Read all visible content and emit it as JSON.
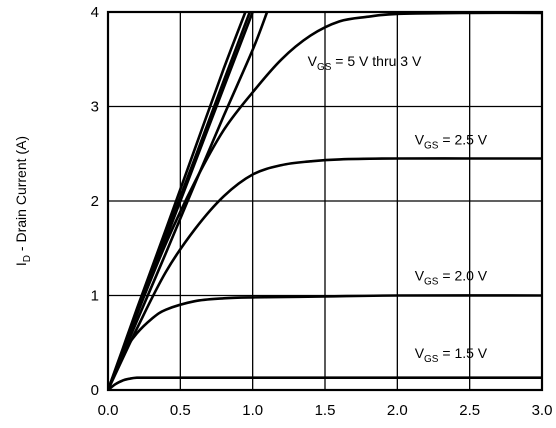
{
  "chart_data": {
    "type": "line",
    "title": "",
    "xlabel": "",
    "ylabel": "I_D - Drain Current (A)",
    "ylabel_main": "I",
    "ylabel_sub": "D",
    "ylabel_rest": " - Drain Current (A)",
    "xlim": [
      0,
      3.0
    ],
    "ylim": [
      0,
      4
    ],
    "x_ticks": [
      "0.0",
      "0.5",
      "1.0",
      "1.5",
      "2.0",
      "2.5",
      "3.0"
    ],
    "y_ticks": [
      "0",
      "1",
      "2",
      "3",
      "4"
    ],
    "grid": true,
    "series": [
      {
        "x": [
          0,
          0.1,
          0.2,
          0.4,
          0.6,
          0.8,
          0.95
        ],
        "y": [
          0,
          0.43,
          0.86,
          1.7,
          2.55,
          3.4,
          4.0
        ]
      },
      {
        "x": [
          0,
          0.1,
          0.2,
          0.4,
          0.6,
          0.8,
          0.98
        ],
        "y": [
          0,
          0.41,
          0.82,
          1.64,
          2.45,
          3.27,
          4.0
        ]
      },
      {
        "x": [
          0,
          0.1,
          0.2,
          0.4,
          0.6,
          0.8,
          1.0
        ],
        "y": [
          0,
          0.4,
          0.8,
          1.6,
          2.4,
          3.2,
          4.0
        ]
      },
      {
        "x": [
          0,
          0.1,
          0.2,
          0.4,
          0.6,
          0.8,
          1.0,
          1.1
        ],
        "y": [
          0,
          0.37,
          0.73,
          1.45,
          2.18,
          2.9,
          3.6,
          4.0
        ]
      },
      {
        "x": [
          0,
          0.2,
          0.4,
          0.6,
          0.8,
          1.0,
          1.2,
          1.4,
          1.6,
          1.8,
          2.0,
          2.5,
          3.0
        ],
        "y": [
          0,
          0.8,
          1.55,
          2.2,
          2.75,
          3.15,
          3.5,
          3.75,
          3.9,
          3.95,
          3.98,
          3.99,
          3.99
        ]
      },
      {
        "x": [
          0,
          0.2,
          0.4,
          0.6,
          0.8,
          1.0,
          1.2,
          1.4,
          1.6,
          2.0,
          2.5,
          3.0
        ],
        "y": [
          0,
          0.65,
          1.25,
          1.7,
          2.05,
          2.28,
          2.38,
          2.42,
          2.44,
          2.45,
          2.45,
          2.45
        ]
      },
      {
        "x": [
          0,
          0.1,
          0.2,
          0.3,
          0.4,
          0.6,
          0.8,
          1.0,
          1.5,
          2.0,
          3.0
        ],
        "y": [
          0,
          0.38,
          0.6,
          0.75,
          0.85,
          0.94,
          0.97,
          0.98,
          0.99,
          1.0,
          1.0
        ]
      },
      {
        "x": [
          0,
          0.05,
          0.1,
          0.15,
          0.2,
          0.3,
          0.5,
          1.0,
          2.0,
          3.0
        ],
        "y": [
          0,
          0.06,
          0.1,
          0.12,
          0.13,
          0.13,
          0.13,
          0.13,
          0.13,
          0.13
        ]
      }
    ],
    "annotations": [
      {
        "main": "V",
        "sub": "GS",
        "rest": " = 5 V thru 3 V",
        "x": 1.38,
        "y": 3.43
      },
      {
        "main": "V",
        "sub": "GS",
        "rest": " = 2.5 V",
        "x": 2.12,
        "y": 2.6
      },
      {
        "main": "V",
        "sub": "GS",
        "rest": " = 2.0 V",
        "x": 2.12,
        "y": 1.16
      },
      {
        "main": "V",
        "sub": "GS",
        "rest": " = 1.5 V",
        "x": 2.12,
        "y": 0.34
      }
    ]
  }
}
